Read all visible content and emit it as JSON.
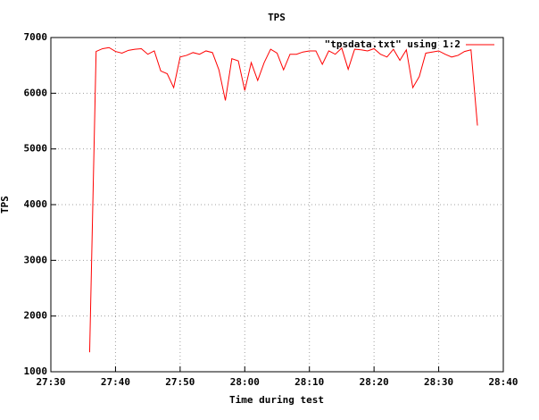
{
  "chart_data": {
    "type": "line",
    "title": "TPS",
    "x_label": "Time during test",
    "y_label": "TPS",
    "x": [
      1656,
      1657,
      1658,
      1659,
      1660,
      1661,
      1662,
      1663,
      1664,
      1665,
      1666,
      1667,
      1668,
      1669,
      1670,
      1671,
      1672,
      1673,
      1674,
      1675,
      1676,
      1677,
      1678,
      1679,
      1680,
      1681,
      1682,
      1683,
      1684,
      1685,
      1686,
      1687,
      1688,
      1689,
      1690,
      1691,
      1692,
      1693,
      1694,
      1695,
      1696,
      1697,
      1698,
      1699,
      1700,
      1701,
      1702,
      1703,
      1704,
      1705,
      1706,
      1707,
      1708,
      1709,
      1710,
      1711,
      1712,
      1713,
      1714,
      1715,
      1716
    ],
    "series": [
      {
        "name": "\"tpsdata.txt\" using 1:2",
        "color": "#ff0000",
        "values": [
          1350,
          6750,
          6800,
          6820,
          6750,
          6720,
          6770,
          6790,
          6800,
          6700,
          6760,
          6400,
          6350,
          6100,
          6650,
          6680,
          6730,
          6700,
          6760,
          6730,
          6420,
          5870,
          6620,
          6580,
          6050,
          6550,
          6230,
          6550,
          6790,
          6720,
          6420,
          6700,
          6700,
          6740,
          6760,
          6760,
          6520,
          6760,
          6700,
          6810,
          6430,
          6790,
          6780,
          6760,
          6800,
          6700,
          6650,
          6790,
          6590,
          6780,
          6100,
          6300,
          6720,
          6740,
          6760,
          6700,
          6650,
          6680,
          6750,
          6780,
          5420
        ]
      }
    ],
    "xlim": [
      1650,
      1720
    ],
    "xticks": [
      {
        "value": 1650,
        "label": "27:30"
      },
      {
        "value": 1660,
        "label": "27:40"
      },
      {
        "value": 1670,
        "label": "27:50"
      },
      {
        "value": 1680,
        "label": "28:00"
      },
      {
        "value": 1690,
        "label": "28:10"
      },
      {
        "value": 1700,
        "label": "28:20"
      },
      {
        "value": 1710,
        "label": "28:30"
      },
      {
        "value": 1720,
        "label": "28:40"
      }
    ],
    "ylim": [
      1000,
      7000
    ],
    "yticks": [
      1000,
      2000,
      3000,
      4000,
      5000,
      6000,
      7000
    ],
    "grid": true,
    "legend": "top-right"
  }
}
